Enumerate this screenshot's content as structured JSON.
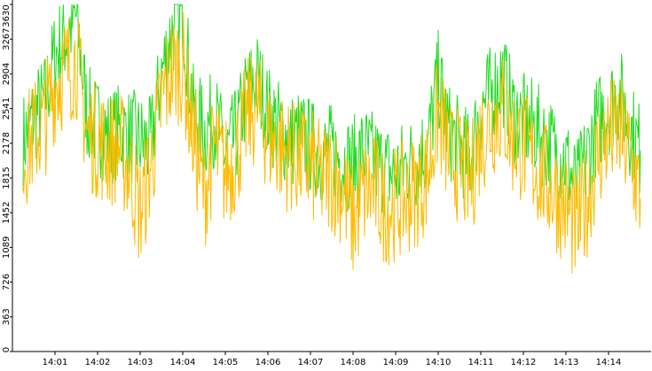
{
  "chart_data": {
    "type": "line",
    "title": "",
    "xlabel": "",
    "ylabel": "",
    "ylim": [
      0,
      3630
    ],
    "y_ticks": [
      0,
      363,
      726,
      1089,
      1452,
      1815,
      2178,
      2541,
      2904,
      3267,
      3630
    ],
    "y_tick_labels": [
      "0",
      "363",
      "726",
      "1089",
      "1452",
      "1815",
      "2178",
      "2541",
      "2904",
      "3267",
      "3630"
    ],
    "x_ticks": [
      "14:01",
      "14:02",
      "14:03",
      "14:04",
      "14:05",
      "14:06",
      "14:07",
      "14:08",
      "14:09",
      "14:10",
      "14:11",
      "14:12",
      "14:13",
      "14:14"
    ],
    "grid": false,
    "legend": "none",
    "colors": {
      "upper_series": "#22dd22",
      "lower_series": "#ffbb00",
      "axis": "#000000"
    },
    "series": [
      {
        "color": "#22dd22",
        "x": [
          "14:00:15",
          "14:00:30",
          "14:00:45",
          "14:01:00",
          "14:01:15",
          "14:01:30",
          "14:01:45",
          "14:02:00",
          "14:02:15",
          "14:02:30",
          "14:02:45",
          "14:03:00",
          "14:03:15",
          "14:03:30",
          "14:03:45",
          "14:04:00",
          "14:04:15",
          "14:04:30",
          "14:04:45",
          "14:05:00",
          "14:05:15",
          "14:05:30",
          "14:05:45",
          "14:06:00",
          "14:06:15",
          "14:06:30",
          "14:06:45",
          "14:07:00",
          "14:07:15",
          "14:07:30",
          "14:07:45",
          "14:08:00",
          "14:08:15",
          "14:08:30",
          "14:08:45",
          "14:09:00",
          "14:09:15",
          "14:09:30",
          "14:09:45",
          "14:10:00",
          "14:10:15",
          "14:10:30",
          "14:10:45",
          "14:11:00",
          "14:11:15",
          "14:11:30",
          "14:11:45",
          "14:12:00",
          "14:12:15",
          "14:12:30",
          "14:12:45",
          "14:13:00",
          "14:13:15",
          "14:13:30",
          "14:13:45",
          "14:14:00",
          "14:14:15",
          "14:14:30",
          "14:14:45"
        ],
        "values": [
          2200,
          2450,
          2600,
          3100,
          3300,
          3500,
          2500,
          2350,
          2250,
          2300,
          2250,
          2200,
          2150,
          2900,
          3350,
          3550,
          2500,
          2300,
          2450,
          2050,
          2250,
          2700,
          2850,
          2500,
          2350,
          2200,
          2250,
          2150,
          2050,
          2100,
          2000,
          1950,
          2100,
          2000,
          1900,
          1850,
          1950,
          2000,
          2150,
          2850,
          2300,
          2150,
          2000,
          2550,
          2700,
          2900,
          2500,
          2400,
          2350,
          2200,
          2100,
          2000,
          1700,
          2050,
          2400,
          2550,
          2700,
          2350,
          2100
        ]
      },
      {
        "color": "#ffbb00",
        "x": [
          "14:00:15",
          "14:00:30",
          "14:00:45",
          "14:01:00",
          "14:01:15",
          "14:01:30",
          "14:01:45",
          "14:02:00",
          "14:02:15",
          "14:02:30",
          "14:02:45",
          "14:03:00",
          "14:03:15",
          "14:03:30",
          "14:03:45",
          "14:04:00",
          "14:04:15",
          "14:04:30",
          "14:04:45",
          "14:05:00",
          "14:05:15",
          "14:05:30",
          "14:05:45",
          "14:06:00",
          "14:06:15",
          "14:06:30",
          "14:06:45",
          "14:07:00",
          "14:07:15",
          "14:07:30",
          "14:07:45",
          "14:08:00",
          "14:08:15",
          "14:08:30",
          "14:08:45",
          "14:09:00",
          "14:09:15",
          "14:09:30",
          "14:09:45",
          "14:10:00",
          "14:10:15",
          "14:10:30",
          "14:10:45",
          "14:11:00",
          "14:11:15",
          "14:11:30",
          "14:11:45",
          "14:12:00",
          "14:12:15",
          "14:12:30",
          "14:12:45",
          "14:13:00",
          "14:13:15",
          "14:13:30",
          "14:13:45",
          "14:14:00",
          "14:14:15",
          "14:14:30",
          "14:14:45"
        ],
        "values": [
          2050,
          2250,
          2400,
          2800,
          2950,
          3050,
          2300,
          2200,
          2100,
          2150,
          1900,
          1450,
          1950,
          2600,
          2950,
          3000,
          2250,
          1650,
          2150,
          1850,
          2050,
          2450,
          2550,
          2250,
          2150,
          2050,
          2000,
          1950,
          1800,
          1850,
          1700,
          1350,
          1650,
          1700,
          1500,
          1550,
          1600,
          1700,
          1850,
          2500,
          2050,
          1950,
          1750,
          2250,
          2400,
          2550,
          2200,
          2150,
          1950,
          1800,
          1650,
          1500,
          1250,
          1600,
          2050,
          2250,
          2300,
          2050,
          1600
        ]
      }
    ]
  }
}
